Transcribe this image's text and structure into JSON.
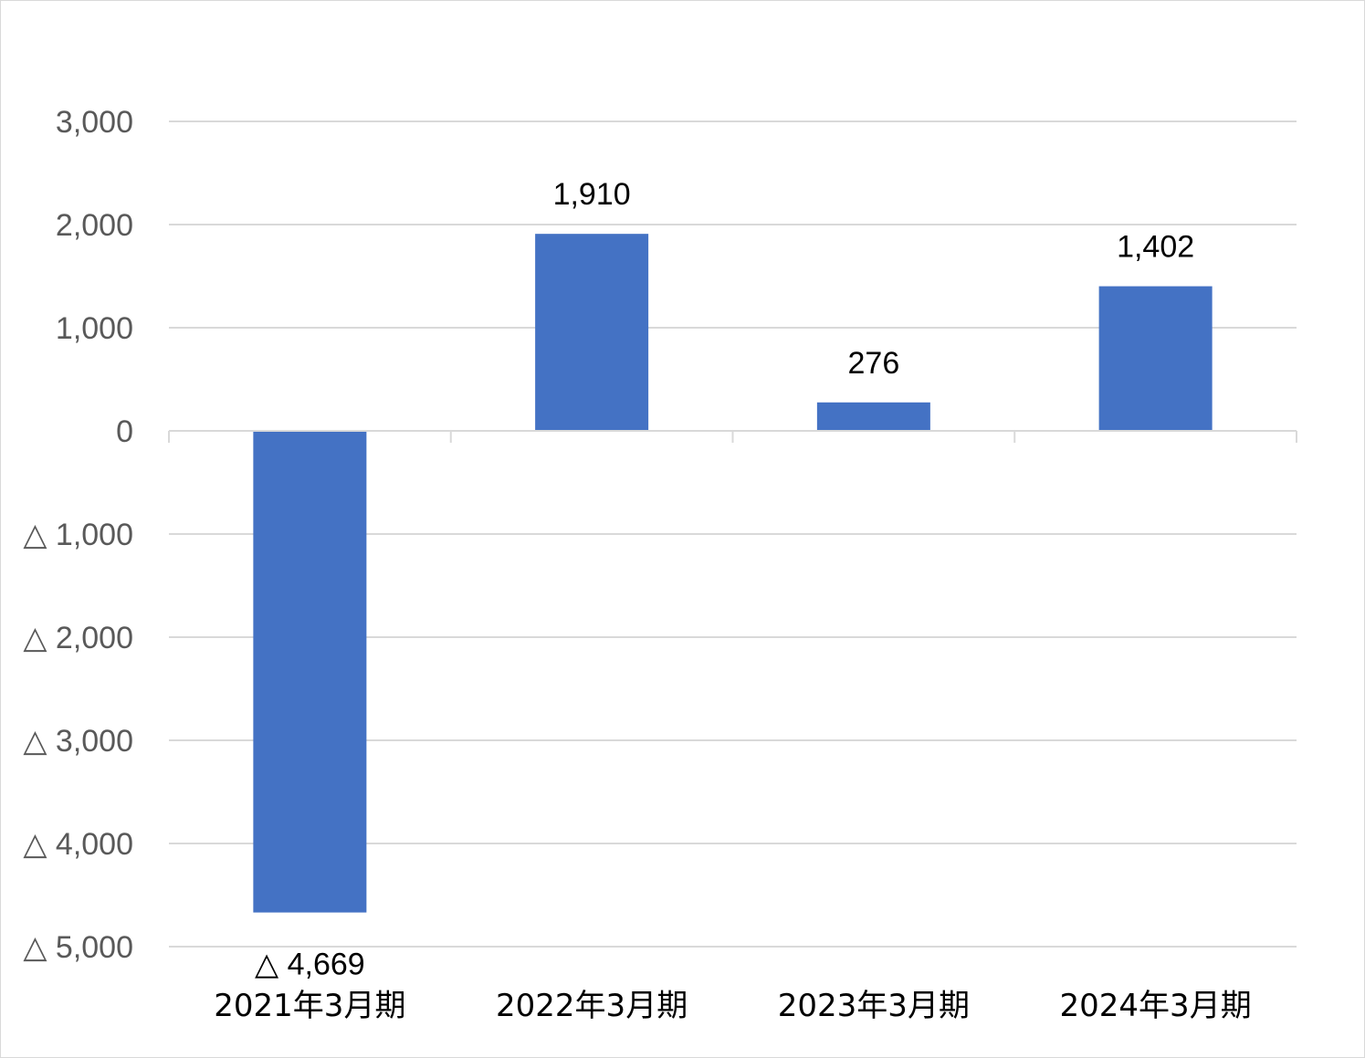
{
  "chart_data": {
    "type": "bar",
    "categories": [
      "2021年3月期",
      "2022年3月期",
      "2023年3月期",
      "2024年3月期"
    ],
    "values": [
      -4669,
      1910,
      276,
      1402
    ],
    "data_labels": [
      "△ 4,669",
      "1,910",
      "276",
      "1,402"
    ],
    "ylim": [
      -5000,
      3000
    ],
    "yticks": [
      3000,
      2000,
      1000,
      0,
      -1000,
      -2000,
      -3000,
      -4000,
      -5000
    ],
    "ytick_labels": [
      "3,000",
      "2,000",
      "1,000",
      "0",
      "△ 1,000",
      "△ 2,000",
      "△ 3,000",
      "△ 4,000",
      "△ 5,000"
    ],
    "title": "",
    "xlabel": "",
    "ylabel": "",
    "grid": true,
    "legend": "none",
    "colors": {
      "bar": "#4472c4",
      "grid": "#d9d9d9",
      "tick_text": "#595959",
      "label_text": "#000000"
    }
  }
}
